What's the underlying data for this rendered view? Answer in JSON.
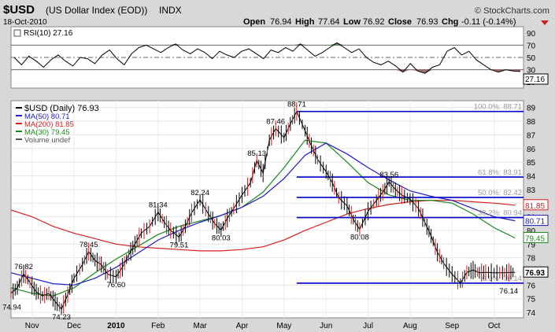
{
  "header": {
    "symbol": "$USD",
    "name": "(US Dollar Index (EOD))",
    "exchange": "INDX",
    "date": "18-Oct-2010",
    "brand": "© StockCharts.com",
    "open_label": "Open",
    "open": "76.94",
    "high_label": "High",
    "high": "77.64",
    "low_label": "Low",
    "low": "76.92",
    "close_label": "Close",
    "close": "76.93",
    "chg_label": "Chg",
    "chg": "-0.11 (-0.14%)"
  },
  "colors": {
    "ma50": "#1c1cc8",
    "ma200": "#d42020",
    "ma30": "#1a8a1a",
    "fib": "#0000cc",
    "price": "#000000",
    "rsi_over": "#3a7a3a",
    "rsi_under": "#8a4a4a"
  },
  "chart_data": [
    {
      "type": "line",
      "title": "RSI(10) 27.16",
      "indicator": "RSI(10)",
      "current_value": 27.16,
      "current_value_label": "27.16",
      "ylim": [
        0,
        100
      ],
      "y_ticks": [
        10,
        30,
        50,
        70,
        90
      ],
      "y_tick_labels": [
        "10",
        "30",
        "50",
        "70",
        "90"
      ],
      "reference_lines": [
        30,
        50,
        70
      ],
      "series": [
        {
          "name": "RSI(10)",
          "values": [
            50,
            38,
            52,
            44,
            34,
            46,
            54,
            44,
            36,
            50,
            48,
            40,
            54,
            62,
            48,
            38,
            56,
            66,
            70,
            64,
            58,
            66,
            72,
            62,
            56,
            64,
            58,
            48,
            60,
            54,
            50,
            60,
            64,
            56,
            48,
            62,
            58,
            66,
            60,
            72,
            62,
            52,
            58,
            66,
            74,
            66,
            58,
            64,
            50,
            42,
            38,
            44,
            36,
            26,
            40,
            28,
            24,
            34,
            38,
            60,
            66,
            54,
            60,
            46,
            38,
            30,
            26,
            30,
            28,
            27
          ]
        }
      ]
    },
    {
      "type": "line",
      "title": "$USD (Daily) 76.93",
      "x_tick_labels": [
        "Nov",
        "Dec",
        "2010",
        "Feb",
        "Mar",
        "Apr",
        "May",
        "Jun",
        "Jul",
        "Aug",
        "Sep",
        "Oct"
      ],
      "x_tick_positions": [
        0.5,
        1.5,
        2.5,
        3.5,
        4.5,
        5.5,
        6.5,
        7.5,
        8.5,
        9.5,
        10.5,
        11.5
      ],
      "xlim": [
        0,
        12.2
      ],
      "ylim": [
        73.6,
        89.5
      ],
      "y_ticks": [
        74,
        75,
        76,
        77,
        78,
        79,
        80,
        81,
        82,
        83,
        84,
        85,
        86,
        87,
        88,
        89
      ],
      "y_tick_labels": [
        "74",
        "75",
        "76",
        "77",
        "78",
        "79",
        "80",
        "81",
        "82",
        "83",
        "84",
        "85",
        "86",
        "87",
        "88",
        "89"
      ],
      "legend": [
        {
          "label": "$USD (Daily) 76.93",
          "color": "#000000"
        },
        {
          "label": "MA(50) 80.71",
          "color": "#1c1cc8"
        },
        {
          "label": "MA(200) 81.85",
          "color": "#d42020"
        },
        {
          "label": "MA(30) 79.45",
          "color": "#1a8a1a"
        },
        {
          "label": "Volume undef",
          "color": "#555555"
        }
      ],
      "series": [
        {
          "name": "$USD",
          "x": [
            0.0,
            0.15,
            0.3,
            0.45,
            0.6,
            0.75,
            0.9,
            1.05,
            1.2,
            1.35,
            1.5,
            1.7,
            1.85,
            2.0,
            2.15,
            2.3,
            2.5,
            2.65,
            2.8,
            2.95,
            3.1,
            3.3,
            3.5,
            3.65,
            3.8,
            4.0,
            4.15,
            4.3,
            4.5,
            4.7,
            4.85,
            5.0,
            5.15,
            5.3,
            5.5,
            5.7,
            5.85,
            6.0,
            6.15,
            6.3,
            6.5,
            6.65,
            6.8,
            7.0,
            7.15,
            7.3,
            7.5,
            7.65,
            7.8,
            8.0,
            8.15,
            8.3,
            8.5,
            8.7,
            8.85,
            9.0,
            9.15,
            9.3,
            9.5,
            9.7,
            9.85,
            10.0,
            10.15,
            10.3,
            10.5,
            10.7,
            10.85,
            11.0,
            11.15,
            11.3,
            11.5,
            11.7,
            11.85,
            12.0
          ],
          "values": [
            75.4,
            75.8,
            76.82,
            76.2,
            75.5,
            75.2,
            75.4,
            74.8,
            74.23,
            75.3,
            76.5,
            77.5,
            78.45,
            77.8,
            77.5,
            76.8,
            76.6,
            77.3,
            78.2,
            79.0,
            79.8,
            80.3,
            81.34,
            80.6,
            80.0,
            79.51,
            80.3,
            81.3,
            82.24,
            81.2,
            80.5,
            80.03,
            80.9,
            81.6,
            82.6,
            83.5,
            85.13,
            84.2,
            86.6,
            87.46,
            86.8,
            87.8,
            88.71,
            87.3,
            86.2,
            85.2,
            84.3,
            83.5,
            82.4,
            81.8,
            80.8,
            80.08,
            81.4,
            82.2,
            82.8,
            83.56,
            83.0,
            82.6,
            82.3,
            81.6,
            80.6,
            79.6,
            78.4,
            77.6,
            76.8,
            76.14,
            76.93,
            77.1,
            76.9,
            76.93,
            76.9,
            76.9,
            76.92,
            76.93
          ]
        },
        {
          "name": "MA(50) 80.71",
          "x": [
            0.0,
            0.5,
            1.0,
            1.5,
            2.0,
            2.5,
            3.0,
            3.5,
            4.0,
            4.5,
            5.0,
            5.5,
            6.0,
            6.5,
            7.0,
            7.5,
            8.0,
            8.5,
            9.0,
            9.5,
            10.0,
            10.5,
            11.0,
            11.5,
            12.0
          ],
          "values": [
            76.9,
            76.5,
            76.1,
            76.0,
            76.5,
            77.3,
            78.3,
            79.3,
            80.0,
            80.6,
            81.1,
            81.7,
            82.5,
            83.8,
            85.5,
            86.4,
            85.6,
            84.6,
            83.7,
            82.9,
            82.5,
            82.2,
            81.6,
            81.0,
            80.71
          ]
        },
        {
          "name": "MA(200) 81.85",
          "x": [
            0.0,
            0.5,
            1.0,
            1.5,
            2.0,
            2.5,
            3.0,
            3.5,
            4.0,
            4.5,
            5.0,
            5.5,
            6.0,
            6.5,
            7.0,
            7.5,
            8.0,
            8.5,
            9.0,
            9.5,
            10.0,
            10.5,
            11.0,
            11.5,
            12.0
          ],
          "values": [
            81.5,
            81.0,
            80.3,
            79.8,
            79.4,
            79.0,
            78.8,
            78.7,
            78.6,
            78.5,
            78.5,
            78.6,
            78.8,
            79.3,
            80.0,
            80.6,
            81.2,
            81.6,
            81.9,
            82.1,
            82.2,
            82.2,
            82.1,
            82.0,
            81.85
          ]
        },
        {
          "name": "MA(30) 79.45",
          "x": [
            0.0,
            0.5,
            1.0,
            1.5,
            2.0,
            2.5,
            3.0,
            3.5,
            4.0,
            4.5,
            5.0,
            5.5,
            6.0,
            6.5,
            7.0,
            7.5,
            8.0,
            8.5,
            9.0,
            9.5,
            10.0,
            10.5,
            11.0,
            11.5,
            12.0
          ],
          "values": [
            75.8,
            75.4,
            75.2,
            75.8,
            76.9,
            77.9,
            78.8,
            79.7,
            80.3,
            80.7,
            81.1,
            81.7,
            82.8,
            84.6,
            86.6,
            86.4,
            85.0,
            83.5,
            82.6,
            82.2,
            82.2,
            82.0,
            81.2,
            80.2,
            79.45
          ]
        }
      ],
      "right_labels": [
        {
          "value": 81.85,
          "label": "81.85",
          "color": "#d42020"
        },
        {
          "value": 80.71,
          "label": "80.71",
          "color": "#1c1cc8"
        },
        {
          "value": 79.45,
          "label": "79.45",
          "color": "#1a8a1a"
        },
        {
          "value": 76.93,
          "label": "76.93",
          "color": "#000000"
        }
      ],
      "annotations": [
        {
          "x": 0.3,
          "y": 76.82,
          "label": "76.82"
        },
        {
          "x": 0.02,
          "y": 74.94,
          "label": "74.94"
        },
        {
          "x": 1.2,
          "y": 74.23,
          "label": "74.23"
        },
        {
          "x": 1.85,
          "y": 78.45,
          "label": "78.45"
        },
        {
          "x": 2.5,
          "y": 76.6,
          "label": "76.60"
        },
        {
          "x": 3.5,
          "y": 81.34,
          "label": "81.34"
        },
        {
          "x": 4.0,
          "y": 79.51,
          "label": "79.51"
        },
        {
          "x": 4.5,
          "y": 82.24,
          "label": "82.24"
        },
        {
          "x": 5.0,
          "y": 80.03,
          "label": "80.03"
        },
        {
          "x": 5.85,
          "y": 85.13,
          "label": "85.13"
        },
        {
          "x": 6.3,
          "y": 87.46,
          "label": "87.46"
        },
        {
          "x": 6.8,
          "y": 88.71,
          "label": "88.71"
        },
        {
          "x": 9.0,
          "y": 83.56,
          "label": "83.56"
        },
        {
          "x": 8.3,
          "y": 80.08,
          "label": "80.08"
        },
        {
          "x": 11.85,
          "y": 76.14,
          "label": "76.14"
        }
      ],
      "fibonacci": {
        "x_start": 6.8,
        "levels": [
          {
            "value": 88.71,
            "label": "100.0%: 88.71"
          },
          {
            "value": 83.91,
            "label": "61.8%: 83.91"
          },
          {
            "value": 82.42,
            "label": "50.0%: 82.42"
          },
          {
            "value": 80.94,
            "label": "38.2%: 80.94"
          },
          {
            "value": 76.14,
            "label": "0.0%: 76.14"
          }
        ]
      }
    }
  ]
}
